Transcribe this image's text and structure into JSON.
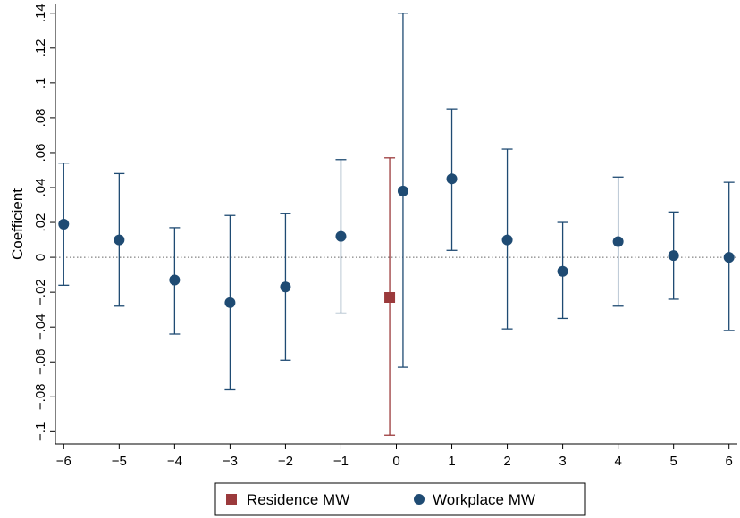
{
  "chart_data": {
    "type": "scatter",
    "ylabel": "Coefficient",
    "xlabel": "",
    "xlim": [
      -6.15,
      6.15
    ],
    "ylim": [
      -0.107,
      0.145
    ],
    "x_ticks": [
      -6,
      -5,
      -4,
      -3,
      -2,
      -1,
      0,
      1,
      2,
      3,
      4,
      5,
      6
    ],
    "x_tick_labels": [
      "−6",
      "−5",
      "−4",
      "−3",
      "−2",
      "−1",
      "0",
      "1",
      "2",
      "3",
      "4",
      "5",
      "6"
    ],
    "y_ticks": [
      -0.1,
      -0.08,
      -0.06,
      -0.04,
      -0.02,
      0,
      0.02,
      0.04,
      0.06,
      0.08,
      0.1,
      0.12,
      0.14
    ],
    "y_tick_labels": [
      "−.1",
      "−.08",
      "−.06",
      "−.04",
      "−.02",
      "0",
      ".02",
      ".04",
      ".06",
      ".08",
      ".1",
      ".12",
      ".14"
    ],
    "reference_line": {
      "y": 0,
      "style": "dotted"
    },
    "legend_position": "bottom",
    "series": [
      {
        "name": "Residence MW",
        "color": "#9b3a3c",
        "marker": "square",
        "points": [
          {
            "x": -0.12,
            "y": -0.023,
            "lo": -0.102,
            "hi": 0.057
          }
        ]
      },
      {
        "name": "Workplace MW",
        "color": "#1f4b73",
        "marker": "circle",
        "points": [
          {
            "x": -6,
            "y": 0.019,
            "lo": -0.016,
            "hi": 0.054
          },
          {
            "x": -5,
            "y": 0.01,
            "lo": -0.028,
            "hi": 0.048
          },
          {
            "x": -4,
            "y": -0.013,
            "lo": -0.044,
            "hi": 0.017
          },
          {
            "x": -3,
            "y": -0.026,
            "lo": -0.076,
            "hi": 0.024
          },
          {
            "x": -2,
            "y": -0.017,
            "lo": -0.059,
            "hi": 0.025
          },
          {
            "x": -1,
            "y": 0.012,
            "lo": -0.032,
            "hi": 0.056
          },
          {
            "x": 0.12,
            "y": 0.038,
            "lo": -0.063,
            "hi": 0.14
          },
          {
            "x": 1,
            "y": 0.045,
            "lo": 0.004,
            "hi": 0.085
          },
          {
            "x": 2,
            "y": 0.01,
            "lo": -0.041,
            "hi": 0.062
          },
          {
            "x": 3,
            "y": -0.008,
            "lo": -0.035,
            "hi": 0.02
          },
          {
            "x": 4,
            "y": 0.009,
            "lo": -0.028,
            "hi": 0.046
          },
          {
            "x": 5,
            "y": 0.001,
            "lo": -0.024,
            "hi": 0.026
          },
          {
            "x": 6,
            "y": 0.0,
            "lo": -0.042,
            "hi": 0.043
          }
        ]
      }
    ]
  }
}
